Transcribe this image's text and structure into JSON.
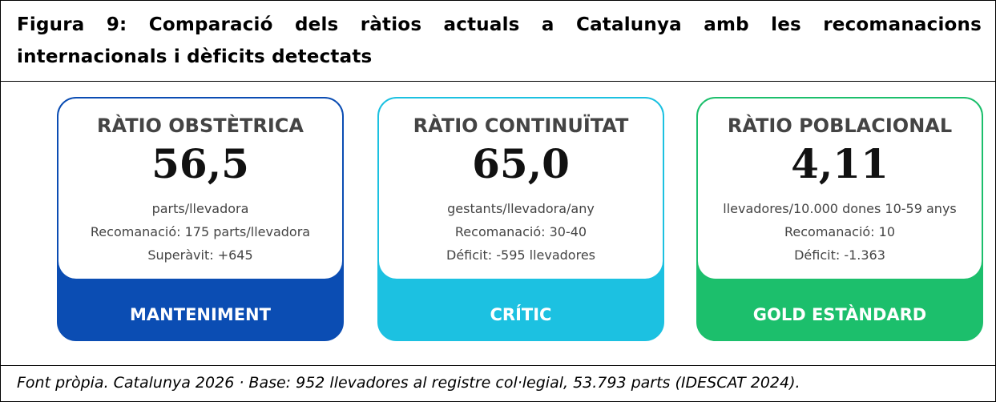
{
  "header": {
    "title": "Figura 9: Comparació dels ràtios actuals a Catalunya amb les recomanacions internacionals i dèficits detectats"
  },
  "cards": [
    {
      "heading": "RÀTIO OBSTÈTRICA",
      "value": "56,5",
      "lines": [
        "parts/llevadora",
        "Recomanació: 175 parts/llevadora",
        "Superàvit: +645"
      ],
      "status": "MANTENIMENT",
      "color": "#0b4db3"
    },
    {
      "heading": "RÀTIO CONTINUÏTAT",
      "value": "65,0",
      "lines": [
        "gestants/llevadora/any",
        "Recomanació: 30-40",
        "Déficit: -595 llevadores"
      ],
      "status": "CRÍTIC",
      "color": "#1cc1e1"
    },
    {
      "heading": "RÀTIO POBLACIONAL",
      "value": "4,11",
      "lines": [
        "llevadores/10.000 dones 10-59 anys",
        "Recomanació: 10",
        "Déficit: -1.363"
      ],
      "status": "GOLD ESTÀNDARD",
      "color": "#1cbf6c"
    }
  ],
  "caption": "Font pròpia. Catalunya 2026 · Base: 952 llevadores al registre col·legial, 53.793 parts (IDESCAT 2024)."
}
